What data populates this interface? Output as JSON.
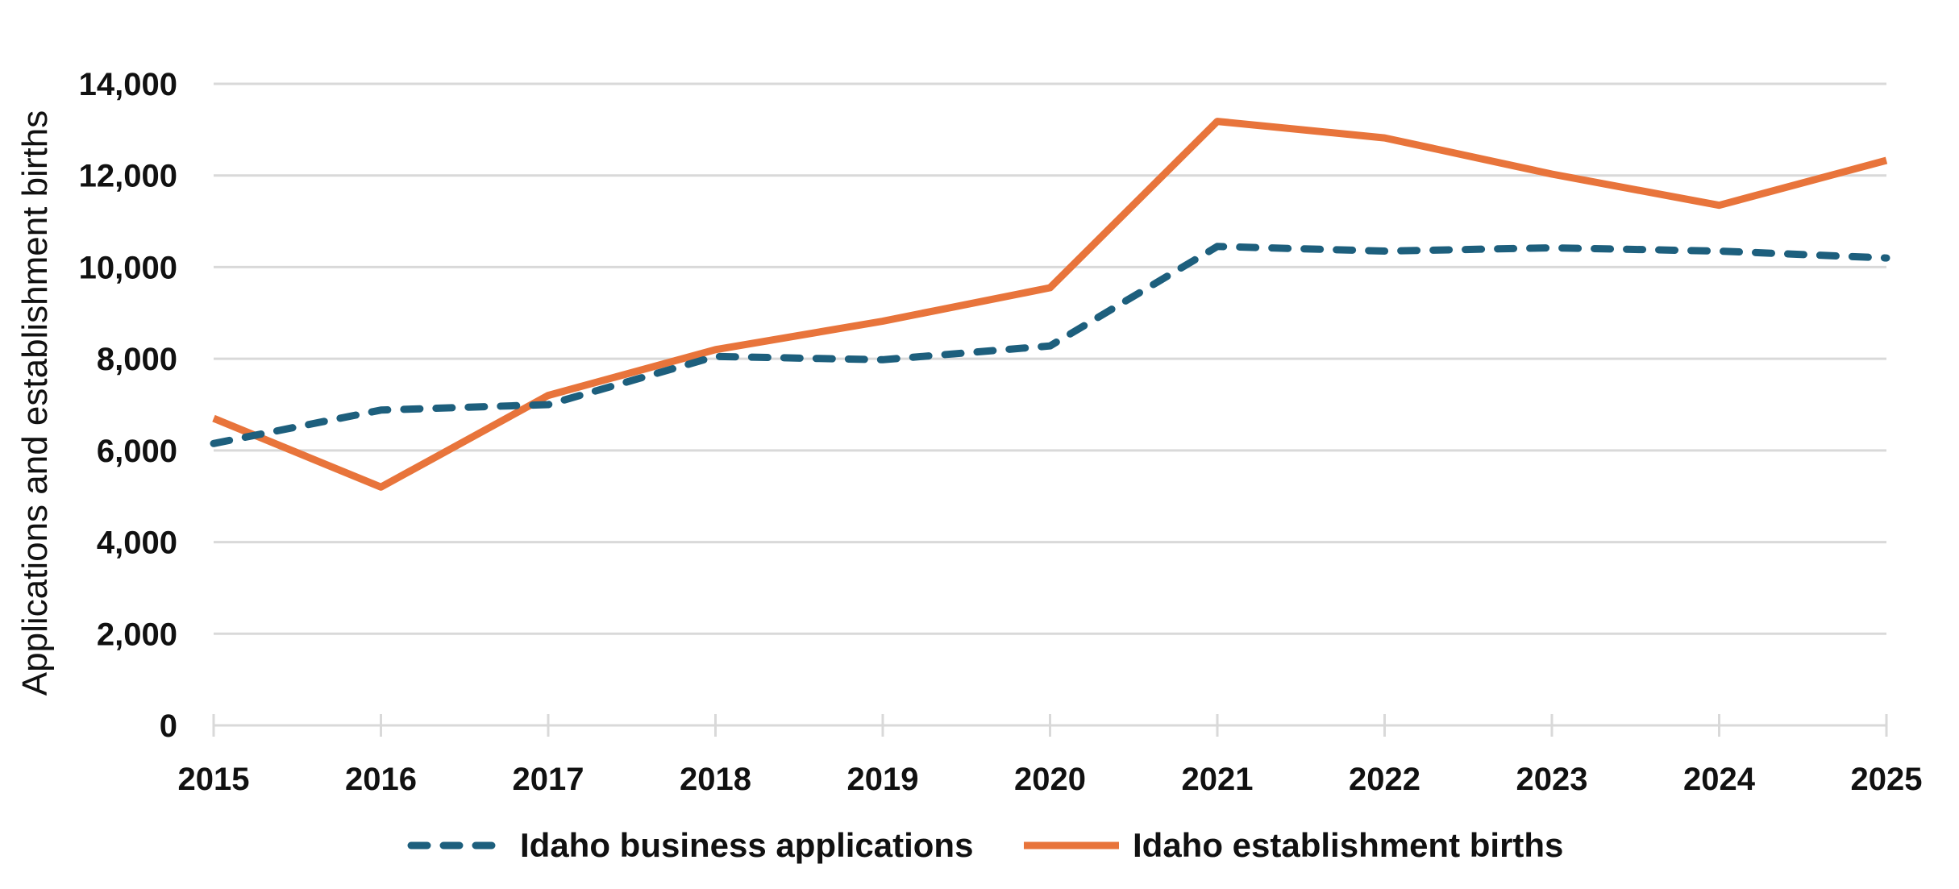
{
  "chart_data": {
    "type": "line",
    "ylabel": "Applications and establishment births",
    "xlabel": "",
    "x": [
      2015,
      2016,
      2017,
      2018,
      2019,
      2020,
      2021,
      2022,
      2023,
      2024,
      2025
    ],
    "x_tick_labels": [
      "2015",
      "2016",
      "2017",
      "2018",
      "2019",
      "2020",
      "2021",
      "2022",
      "2023",
      "2024",
      "2025"
    ],
    "ylim": [
      0,
      14000
    ],
    "y_ticks": [
      0,
      2000,
      4000,
      6000,
      8000,
      10000,
      12000,
      14000
    ],
    "y_tick_labels": [
      "0",
      "2,000",
      "4,000",
      "6,000",
      "8,000",
      "10,000",
      "12,000",
      "14,000"
    ],
    "grid": "horizontal",
    "legend_position": "bottom-center",
    "series": [
      {
        "name": "Idaho business applications",
        "style": "dashed",
        "color": "#1d5f7d",
        "values": [
          6150,
          6880,
          7000,
          8050,
          7980,
          8280,
          10450,
          10350,
          10420,
          10350,
          10200
        ]
      },
      {
        "name": "Idaho establishment births",
        "style": "solid",
        "color": "#e8743b",
        "values": [
          6700,
          5200,
          7200,
          8200,
          8820,
          9550,
          13180,
          12820,
          12030,
          11350,
          12330
        ]
      }
    ]
  }
}
